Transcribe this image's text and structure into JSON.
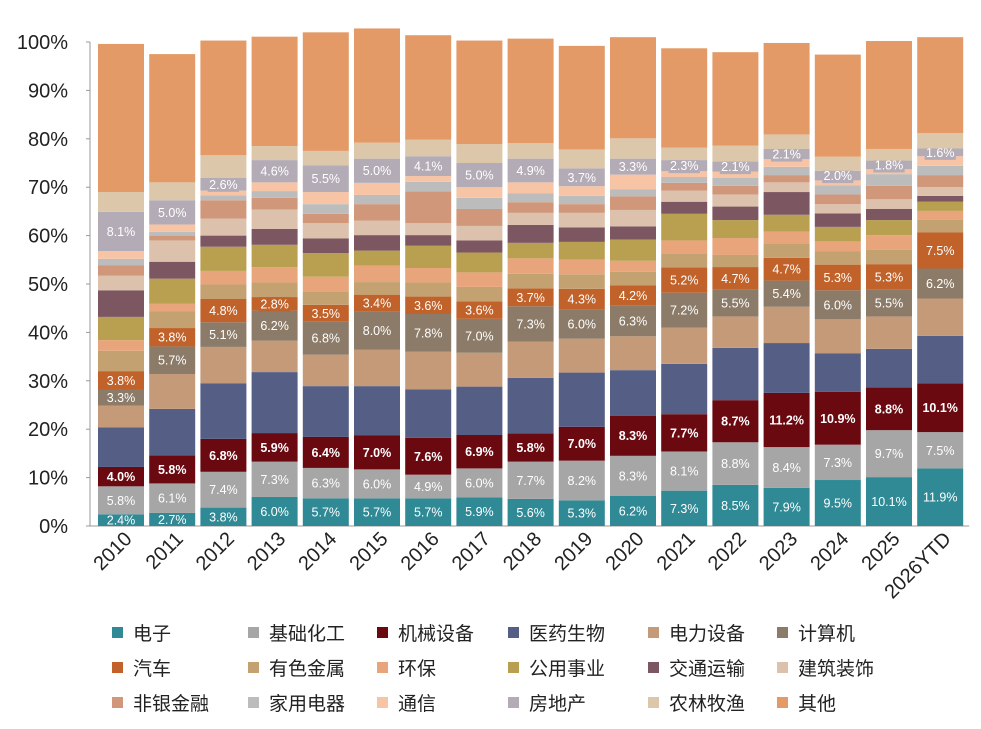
{
  "chart_data": {
    "type": "bar",
    "stacked": true,
    "percent": true,
    "categories": [
      "2010",
      "2011",
      "2012",
      "2013",
      "2014",
      "2015",
      "2016",
      "2017",
      "2018",
      "2019",
      "2020",
      "2021",
      "2022",
      "2023",
      "2024",
      "2025",
      "2026YTD"
    ],
    "yticks": [
      "0%",
      "10%",
      "20%",
      "30%",
      "40%",
      "50%",
      "60%",
      "70%",
      "80%",
      "90%",
      "100%"
    ],
    "ylim": [
      0,
      100
    ],
    "legend_position": "bottom",
    "series": [
      {
        "name": "电子",
        "color": "#2f8a96",
        "values": [
          2.4,
          2.7,
          3.8,
          6.0,
          5.7,
          5.7,
          5.7,
          5.9,
          5.6,
          5.3,
          6.2,
          7.3,
          8.5,
          7.9,
          9.5,
          10.1,
          11.9
        ],
        "labels": [
          "2.4%",
          "2.7%",
          "3.8%",
          "6.0%",
          "5.7%",
          "5.7%",
          "5.7%",
          "5.9%",
          "5.6%",
          "5.3%",
          "6.2%",
          "7.3%",
          "8.5%",
          "7.9%",
          "9.5%",
          "10.1%",
          "11.9%"
        ]
      },
      {
        "name": "基础化工",
        "color": "#a6a6a6",
        "values": [
          5.8,
          6.1,
          7.4,
          7.3,
          6.3,
          6.0,
          4.9,
          6.0,
          7.7,
          8.2,
          8.3,
          8.1,
          8.8,
          8.4,
          7.3,
          9.7,
          7.5
        ],
        "labels": [
          "5.8%",
          "6.1%",
          "7.4%",
          "7.3%",
          "6.3%",
          "6.0%",
          "4.9%",
          "6.0%",
          "7.7%",
          "8.2%",
          "8.3%",
          "8.1%",
          "8.8%",
          "8.4%",
          "7.3%",
          "9.7%",
          "7.5%"
        ]
      },
      {
        "name": "机械设备",
        "color": "#6a0a10",
        "values": [
          4.0,
          5.8,
          6.8,
          5.9,
          6.4,
          7.0,
          7.6,
          6.9,
          5.8,
          7.0,
          8.3,
          7.7,
          8.7,
          11.2,
          10.9,
          8.8,
          10.1
        ],
        "labels": [
          "4.0%",
          "5.8%",
          "6.8%",
          "5.9%",
          "6.4%",
          "7.0%",
          "7.6%",
          "6.9%",
          "5.8%",
          "7.0%",
          "8.3%",
          "7.7%",
          "8.7%",
          "11.2%",
          "10.9%",
          "8.8%",
          "10.1%"
        ]
      },
      {
        "name": "医药生物",
        "color": "#555e85",
        "values": [
          8.2,
          9.6,
          11.5,
          12.6,
          10.5,
          10.2,
          10.0,
          10.0,
          11.5,
          11.2,
          9.4,
          10.4,
          10.8,
          10.3,
          8.0,
          8.0,
          9.8
        ],
        "labels": [
          "",
          "",
          "",
          "",
          "",
          "",
          "",
          "",
          "",
          "",
          "",
          "",
          "",
          "",
          "",
          "",
          ""
        ]
      },
      {
        "name": "电力设备",
        "color": "#c49a78",
        "values": [
          4.5,
          7.2,
          7.5,
          6.5,
          6.5,
          7.5,
          7.8,
          7.0,
          7.5,
          7.0,
          7.0,
          7.5,
          6.5,
          7.5,
          7.0,
          6.7,
          7.7
        ],
        "labels": [
          "",
          "",
          "",
          "",
          "",
          "",
          "",
          "",
          "",
          "",
          "",
          "",
          "",
          "",
          "",
          "",
          ""
        ]
      },
      {
        "name": "计算机",
        "color": "#8b7b68",
        "values": [
          3.3,
          5.7,
          5.1,
          6.2,
          6.8,
          8.0,
          7.8,
          7.0,
          7.3,
          6.0,
          6.3,
          7.2,
          5.5,
          5.4,
          6.0,
          5.5,
          6.2
        ],
        "labels": [
          "3.3%",
          "5.7%",
          "5.1%",
          "6.2%",
          "6.8%",
          "8.0%",
          "7.8%",
          "7.0%",
          "7.3%",
          "6.0%",
          "6.3%",
          "7.2%",
          "5.5%",
          "5.4%",
          "6.0%",
          "5.5%",
          "6.2%"
        ]
      },
      {
        "name": "汽车",
        "color": "#c0622a",
        "values": [
          3.8,
          3.8,
          4.8,
          2.8,
          3.5,
          3.4,
          3.6,
          3.6,
          3.7,
          4.3,
          4.2,
          5.2,
          4.7,
          4.7,
          5.3,
          5.3,
          7.5
        ],
        "labels": [
          "3.8%",
          "3.8%",
          "4.8%",
          "2.8%",
          "3.5%",
          "3.4%",
          "3.6%",
          "3.6%",
          "3.7%",
          "4.3%",
          "4.2%",
          "5.2%",
          "4.7%",
          "4.7%",
          "5.3%",
          "5.3%",
          "7.5%"
        ]
      },
      {
        "name": "有色金属",
        "color": "#c3a170",
        "values": [
          4.2,
          3.5,
          3.0,
          3.0,
          2.8,
          2.6,
          2.9,
          3.0,
          3.0,
          3.0,
          2.8,
          2.8,
          2.5,
          3.0,
          2.8,
          3.0,
          2.6
        ]
      },
      {
        "name": "环保",
        "color": "#e8a57c",
        "values": [
          2.2,
          1.5,
          2.8,
          3.2,
          3.0,
          3.4,
          3.0,
          3.0,
          3.2,
          3.0,
          2.3,
          2.8,
          3.5,
          2.4,
          2.0,
          3.0,
          1.8
        ]
      },
      {
        "name": "公用事业",
        "color": "#b9a050",
        "values": [
          4.8,
          5.2,
          5.0,
          4.6,
          4.9,
          3.1,
          4.6,
          4.1,
          3.2,
          3.7,
          4.4,
          5.5,
          3.7,
          3.5,
          3.0,
          3.1,
          1.9
        ]
      },
      {
        "name": "交通运输",
        "color": "#7c5761",
        "values": [
          5.5,
          3.5,
          2.3,
          3.3,
          3.0,
          3.2,
          2.2,
          2.5,
          3.7,
          3.0,
          2.7,
          2.5,
          2.8,
          4.7,
          2.8,
          2.3,
          1.2
        ]
      },
      {
        "name": "建筑装饰",
        "color": "#dcc1ad",
        "values": [
          3.0,
          4.4,
          3.5,
          4.0,
          3.2,
          3.0,
          2.5,
          3.0,
          2.5,
          3.0,
          3.4,
          2.3,
          2.5,
          2.0,
          1.9,
          2.0,
          1.8
        ]
      },
      {
        "name": "非银金融",
        "color": "#d1977a",
        "values": [
          2.2,
          1.0,
          3.8,
          2.4,
          1.9,
          3.4,
          6.5,
          3.5,
          2.2,
          1.8,
          2.8,
          1.6,
          1.8,
          1.5,
          2.0,
          2.8,
          2.5
        ]
      },
      {
        "name": "家用电器",
        "color": "#bcbcbc",
        "values": [
          1.3,
          0.8,
          1.0,
          1.4,
          2.0,
          1.9,
          2.0,
          2.3,
          1.8,
          1.7,
          1.5,
          1.2,
          1.6,
          1.7,
          1.9,
          2.4,
          1.9
        ]
      },
      {
        "name": "通信",
        "color": "#f7c5a6",
        "values": [
          1.6,
          1.5,
          1.0,
          1.8,
          2.5,
          2.5,
          1.2,
          2.2,
          2.3,
          2.0,
          3.0,
          1.2,
          1.3,
          1.6,
          1.0,
          1.0,
          2.0
        ]
      },
      {
        "name": "房地产",
        "color": "#b3abb6",
        "values": [
          8.1,
          5.0,
          2.6,
          4.6,
          5.5,
          5.0,
          4.1,
          5.0,
          4.9,
          3.7,
          3.3,
          2.3,
          2.1,
          2.1,
          2.0,
          1.8,
          1.6
        ],
        "labels": [
          "8.1%",
          "5.0%",
          "2.6%",
          "4.6%",
          "5.5%",
          "5.0%",
          "4.1%",
          "5.0%",
          "4.9%",
          "3.7%",
          "3.3%",
          "2.3%",
          "2.1%",
          "2.1%",
          "2.0%",
          "1.8%",
          "1.6%"
        ]
      },
      {
        "name": "农林牧渔",
        "color": "#dcc7aa",
        "values": [
          4.1,
          3.7,
          4.7,
          2.9,
          3.0,
          3.3,
          3.4,
          3.9,
          3.2,
          3.9,
          4.2,
          2.6,
          3.3,
          3.0,
          2.9,
          2.4,
          3.2
        ]
      },
      {
        "name": "其他",
        "color": "#e39a66",
        "values": [
          30.6,
          26.5,
          23.7,
          22.6,
          24.5,
          23.6,
          21.6,
          21.4,
          21.6,
          21.4,
          20.9,
          20.5,
          19.3,
          18.9,
          21.1,
          22.3,
          19.8
        ]
      }
    ]
  }
}
